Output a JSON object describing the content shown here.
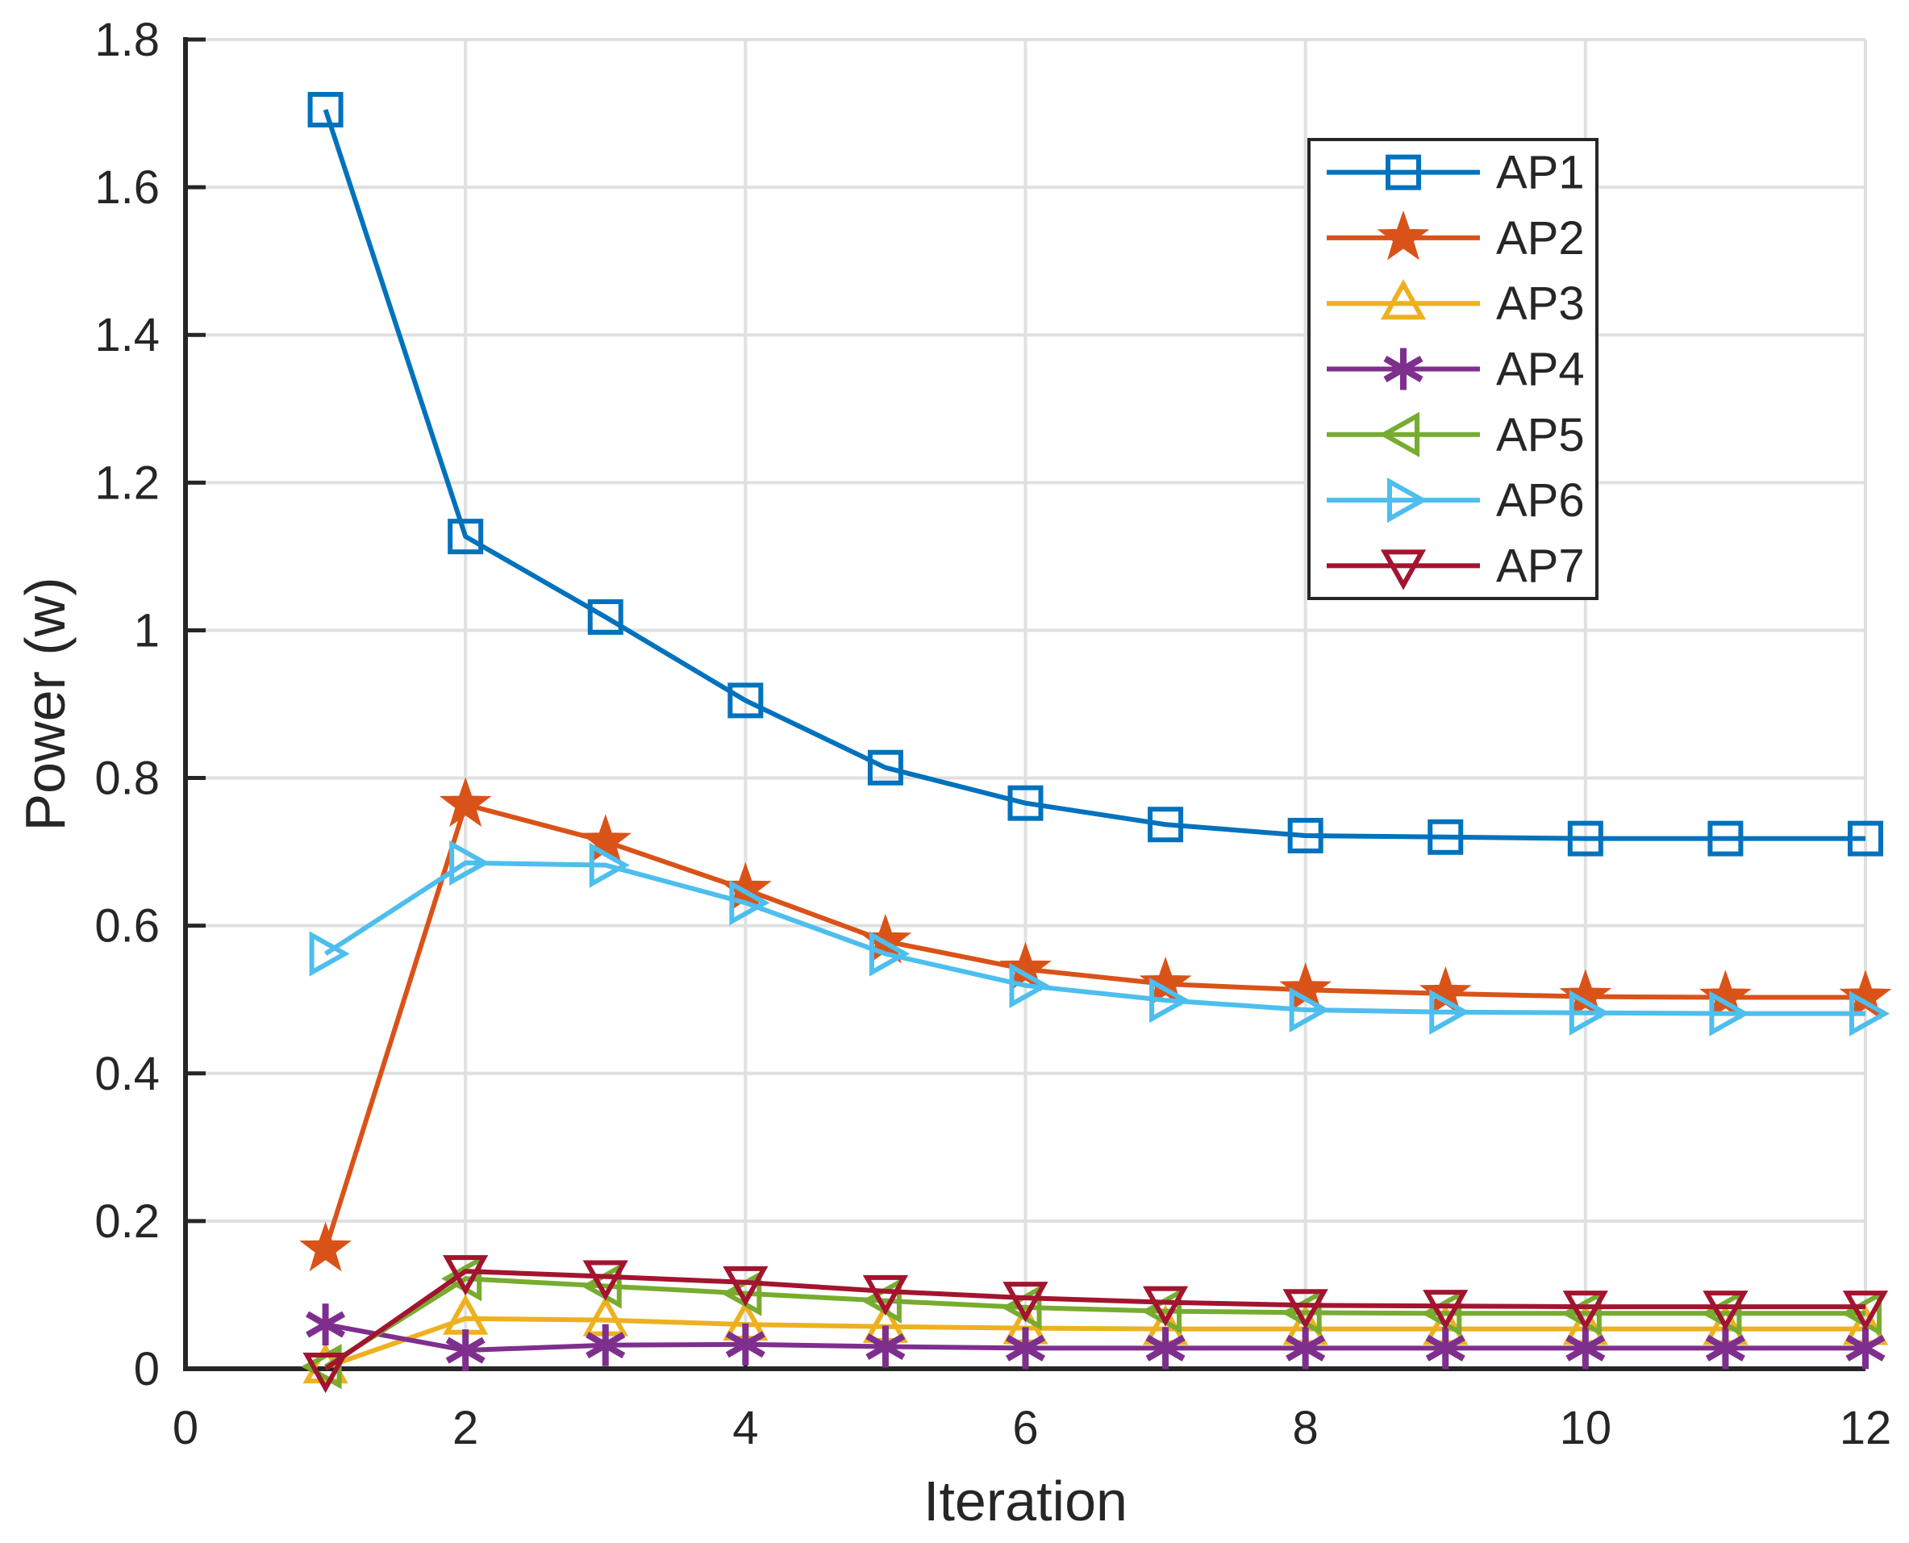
{
  "figure": {
    "background": "#ffffff",
    "grid_color": "#e0e0e0",
    "axis_color": "#262626",
    "text_color": "#262626",
    "legend_border_color": "#262626",
    "legend_background": "#ffffff"
  },
  "chart_data": {
    "type": "line",
    "title": "",
    "xlabel": "Iteration",
    "ylabel": "Power (w)",
    "xlim": [
      0,
      12
    ],
    "ylim": [
      0,
      1.8
    ],
    "grid": true,
    "legend_position": "upper-right-inside",
    "x_ticks": [
      0,
      2,
      4,
      6,
      8,
      10,
      12
    ],
    "x_tick_labels": [
      "0",
      "2",
      "4",
      "6",
      "8",
      "10",
      "12"
    ],
    "y_ticks": [
      0,
      0.2,
      0.4,
      0.6,
      0.8,
      1.0,
      1.2,
      1.4,
      1.6,
      1.8
    ],
    "y_tick_labels": [
      "0",
      "0.2",
      "0.4",
      "0.6",
      "0.8",
      "1",
      "1.2",
      "1.4",
      "1.6",
      "1.8"
    ],
    "x": [
      1,
      2,
      3,
      4,
      5,
      6,
      7,
      8,
      9,
      10,
      11,
      12
    ],
    "series": [
      {
        "name": "AP1",
        "color": "#0072BD",
        "marker": "square",
        "values": [
          1.705,
          1.127,
          1.018,
          0.905,
          0.814,
          0.766,
          0.737,
          0.722,
          0.72,
          0.718,
          0.718,
          0.718
        ]
      },
      {
        "name": "AP2",
        "color": "#D95319",
        "marker": "pentagram",
        "values": [
          0.162,
          0.764,
          0.714,
          0.649,
          0.579,
          0.541,
          0.521,
          0.513,
          0.508,
          0.504,
          0.503,
          0.503
        ]
      },
      {
        "name": "AP3",
        "color": "#EDB120",
        "marker": "triangle-up",
        "values": [
          0.002,
          0.068,
          0.066,
          0.06,
          0.057,
          0.055,
          0.054,
          0.054,
          0.054,
          0.054,
          0.054,
          0.054
        ]
      },
      {
        "name": "AP4",
        "color": "#7E2F8E",
        "marker": "asterisk",
        "values": [
          0.06,
          0.025,
          0.032,
          0.033,
          0.03,
          0.028,
          0.028,
          0.028,
          0.028,
          0.028,
          0.028,
          0.028
        ]
      },
      {
        "name": "AP5",
        "color": "#77AC30",
        "marker": "triangle-left",
        "values": [
          0.003,
          0.122,
          0.112,
          0.102,
          0.092,
          0.083,
          0.078,
          0.076,
          0.075,
          0.075,
          0.075,
          0.075
        ]
      },
      {
        "name": "AP6",
        "color": "#4DBEEE",
        "marker": "triangle-right",
        "values": [
          0.562,
          0.685,
          0.682,
          0.631,
          0.562,
          0.519,
          0.499,
          0.486,
          0.483,
          0.482,
          0.481,
          0.481
        ]
      },
      {
        "name": "AP7",
        "color": "#A2142F",
        "marker": "triangle-down",
        "values": [
          0.0,
          0.132,
          0.125,
          0.117,
          0.105,
          0.096,
          0.09,
          0.086,
          0.085,
          0.084,
          0.084,
          0.084
        ]
      }
    ]
  }
}
